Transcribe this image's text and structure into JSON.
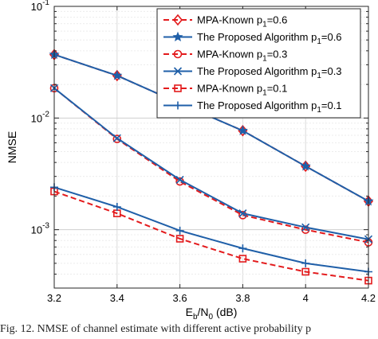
{
  "chart_data": {
    "type": "line",
    "ylabel": "NMSE",
    "xlabel": "E_b/N_0 (dB)",
    "xlabel_parts": {
      "main": "E",
      "sub1": "b",
      "mid": "/N",
      "sub2": "0",
      "unit": " (dB)"
    },
    "y_scale": "log",
    "xlim": [
      3.2,
      4.2
    ],
    "ylim": [
      0.0003,
      0.1
    ],
    "grid": true,
    "legend_position": "top-right",
    "x": [
      3.2,
      3.4,
      3.6,
      3.8,
      4.0,
      4.2
    ],
    "x_tick_labels": [
      "3.2",
      "3.4",
      "3.6",
      "3.8",
      "4",
      "4.2"
    ],
    "y_ticks": [
      {
        "value": 0.1,
        "base": "10",
        "exp": "-1"
      },
      {
        "value": 0.01,
        "base": "10",
        "exp": "-2"
      },
      {
        "value": 0.001,
        "base": "10",
        "exp": "-3"
      }
    ],
    "series": [
      {
        "name": "MPA-Known p_1=0.6",
        "name_parts": [
          "MPA-Known p",
          "1",
          "=0.6"
        ],
        "color": "#e31a1c",
        "dash": true,
        "marker": "diamond",
        "values": [
          0.037,
          0.024,
          0.0135,
          0.0077,
          0.0037,
          0.0018
        ]
      },
      {
        "name": "The Proposed Algorithm p_1=0.6",
        "name_parts": [
          "The Proposed Algorithm p",
          "1",
          "=0.6"
        ],
        "color": "#1f5fa8",
        "dash": false,
        "marker": "star",
        "values": [
          0.037,
          0.024,
          0.0135,
          0.0077,
          0.0037,
          0.0018
        ]
      },
      {
        "name": "MPA-Known p_1=0.3",
        "name_parts": [
          "MPA-Known p",
          "1",
          "=0.3"
        ],
        "color": "#e31a1c",
        "dash": true,
        "marker": "circle",
        "values": [
          0.0185,
          0.0065,
          0.0027,
          0.00135,
          0.001,
          0.00077
        ]
      },
      {
        "name": "The Proposed Algorithm p_1=0.3",
        "name_parts": [
          "The Proposed Algorithm p",
          "1",
          "=0.3"
        ],
        "color": "#1f5fa8",
        "dash": false,
        "marker": "x",
        "values": [
          0.0185,
          0.0066,
          0.0028,
          0.0014,
          0.00105,
          0.00082
        ]
      },
      {
        "name": "MPA-Known p_1=0.1",
        "name_parts": [
          "MPA-Known  p",
          "1",
          "=0.1"
        ],
        "color": "#e31a1c",
        "dash": true,
        "marker": "square",
        "values": [
          0.0022,
          0.0014,
          0.00083,
          0.00055,
          0.00042,
          0.00035
        ]
      },
      {
        "name": "The Proposed Algorithm p_1=0.1",
        "name_parts": [
          "The Proposed Algorithm  p",
          "1",
          "=0.1"
        ],
        "color": "#1f5fa8",
        "dash": false,
        "marker": "plus",
        "values": [
          0.0024,
          0.0016,
          0.00098,
          0.00068,
          0.0005,
          0.00042
        ]
      }
    ]
  },
  "caption": "Fig. 12.   NMSE of channel estimate with different active probability p"
}
